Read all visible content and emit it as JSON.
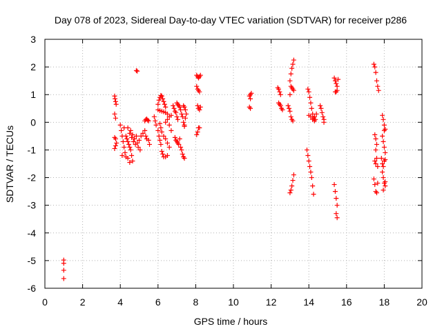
{
  "chart_data": {
    "type": "scatter",
    "title": "Day 078 of 2023, Sidereal Day-to-day VTEC variation (SDTVAR) for receiver p286",
    "xlabel": "GPS time / hours",
    "ylabel": "SDTVAR / TECUs",
    "xlim": [
      0,
      20
    ],
    "ylim": [
      -6,
      3
    ],
    "xticks": [
      "0",
      "2",
      "4",
      "6",
      "8",
      "10",
      "12",
      "14",
      "16",
      "18",
      "20"
    ],
    "yticks": [
      "-6",
      "-5",
      "-4",
      "-3",
      "-2",
      "-1",
      "0",
      "1",
      "2",
      "3"
    ],
    "grid": true,
    "marker": "+",
    "color": "#ff0000",
    "points": [
      [
        1.0,
        -4.98
      ],
      [
        1.0,
        -5.1
      ],
      [
        1.0,
        -5.35
      ],
      [
        1.0,
        -5.65
      ],
      [
        3.7,
        0.95
      ],
      [
        3.72,
        0.85
      ],
      [
        3.75,
        0.75
      ],
      [
        3.78,
        0.65
      ],
      [
        3.7,
        0.3
      ],
      [
        3.75,
        0.15
      ],
      [
        3.7,
        -0.55
      ],
      [
        3.75,
        -0.6
      ],
      [
        3.7,
        -0.95
      ],
      [
        3.75,
        -0.85
      ],
      [
        3.8,
        -0.75
      ],
      [
        4.0,
        -0.1
      ],
      [
        4.05,
        -0.3
      ],
      [
        4.1,
        -0.5
      ],
      [
        4.15,
        -0.7
      ],
      [
        4.2,
        -0.9
      ],
      [
        4.25,
        -1.1
      ],
      [
        4.3,
        -1.25
      ],
      [
        4.1,
        -1.2
      ],
      [
        4.2,
        -0.2
      ],
      [
        4.3,
        -0.5
      ],
      [
        4.35,
        -0.6
      ],
      [
        4.4,
        -0.7
      ],
      [
        4.45,
        -0.8
      ],
      [
        4.5,
        -0.9
      ],
      [
        4.55,
        -1.0
      ],
      [
        4.6,
        -1.2
      ],
      [
        4.65,
        -1.4
      ],
      [
        4.5,
        -1.45
      ],
      [
        4.4,
        -1.3
      ],
      [
        4.4,
        -0.2
      ],
      [
        4.5,
        -0.4
      ],
      [
        4.6,
        -0.55
      ],
      [
        4.7,
        -0.7
      ],
      [
        4.8,
        -0.8
      ],
      [
        4.9,
        -0.75
      ],
      [
        5.0,
        -0.65
      ],
      [
        5.1,
        -0.5
      ],
      [
        5.2,
        -0.4
      ],
      [
        4.55,
        -0.3
      ],
      [
        4.65,
        -0.45
      ],
      [
        4.75,
        -0.6
      ],
      [
        4.85,
        -0.5
      ],
      [
        4.95,
        -0.9
      ],
      [
        5.05,
        -1.0
      ],
      [
        4.85,
        1.87
      ],
      [
        4.9,
        1.85
      ],
      [
        5.3,
        0.05
      ],
      [
        5.35,
        0.1
      ],
      [
        5.4,
        0.12
      ],
      [
        5.45,
        0.08
      ],
      [
        5.5,
        0.05
      ],
      [
        5.3,
        -0.3
      ],
      [
        5.35,
        -0.5
      ],
      [
        5.4,
        -0.6
      ],
      [
        5.5,
        -0.65
      ],
      [
        5.55,
        -0.8
      ],
      [
        5.8,
        0.2
      ],
      [
        5.85,
        0.05
      ],
      [
        5.9,
        -0.1
      ],
      [
        6.0,
        -0.3
      ],
      [
        6.05,
        -0.5
      ],
      [
        6.1,
        -0.65
      ],
      [
        6.15,
        -0.8
      ],
      [
        6.2,
        -1.05
      ],
      [
        6.25,
        -1.15
      ],
      [
        6.3,
        -1.25
      ],
      [
        6.0,
        0.65
      ],
      [
        6.05,
        0.8
      ],
      [
        6.1,
        0.9
      ],
      [
        6.15,
        0.97
      ],
      [
        6.2,
        0.95
      ],
      [
        6.25,
        0.85
      ],
      [
        6.3,
        0.75
      ],
      [
        6.35,
        0.65
      ],
      [
        6.4,
        0.55
      ],
      [
        6.0,
        0.45
      ],
      [
        6.1,
        0.42
      ],
      [
        6.2,
        0.4
      ],
      [
        6.3,
        0.38
      ],
      [
        6.4,
        0.35
      ],
      [
        6.5,
        0.3
      ],
      [
        6.1,
        -0.05
      ],
      [
        6.15,
        -0.2
      ],
      [
        6.2,
        -0.35
      ],
      [
        6.3,
        -0.5
      ],
      [
        6.4,
        -0.6
      ],
      [
        6.5,
        -0.75
      ],
      [
        6.6,
        -0.9
      ],
      [
        6.5,
        -1.2
      ],
      [
        6.4,
        -1.25
      ],
      [
        6.4,
        0.0
      ],
      [
        6.5,
        0.1
      ],
      [
        6.6,
        0.2
      ],
      [
        6.7,
        0.25
      ],
      [
        6.6,
        -0.1
      ],
      [
        6.7,
        -0.3
      ],
      [
        6.8,
        0.6
      ],
      [
        6.85,
        0.5
      ],
      [
        6.9,
        0.4
      ],
      [
        6.95,
        0.35
      ],
      [
        7.0,
        0.2
      ],
      [
        7.05,
        0.1
      ],
      [
        6.9,
        -0.55
      ],
      [
        6.95,
        -0.65
      ],
      [
        7.0,
        -0.7
      ],
      [
        7.05,
        -0.75
      ],
      [
        7.1,
        -0.8
      ],
      [
        7.15,
        -0.6
      ],
      [
        7.0,
        0.7
      ],
      [
        7.05,
        0.65
      ],
      [
        7.1,
        0.6
      ],
      [
        7.15,
        0.55
      ],
      [
        7.2,
        0.45
      ],
      [
        7.25,
        0.3
      ],
      [
        7.3,
        0.2
      ],
      [
        7.35,
        0.0
      ],
      [
        7.4,
        -0.15
      ],
      [
        7.2,
        -0.9
      ],
      [
        7.25,
        -1.0
      ],
      [
        7.3,
        -1.15
      ],
      [
        7.35,
        -1.25
      ],
      [
        7.4,
        -1.3
      ],
      [
        7.35,
        0.6
      ],
      [
        7.4,
        0.55
      ],
      [
        7.45,
        0.45
      ],
      [
        7.5,
        0.3
      ],
      [
        7.45,
        0.15
      ],
      [
        7.4,
        -0.1
      ],
      [
        8.05,
        1.7
      ],
      [
        8.1,
        1.65
      ],
      [
        8.15,
        1.6
      ],
      [
        8.2,
        1.65
      ],
      [
        8.25,
        1.7
      ],
      [
        8.05,
        1.3
      ],
      [
        8.1,
        1.2
      ],
      [
        8.15,
        1.15
      ],
      [
        8.2,
        1.1
      ],
      [
        8.1,
        0.6
      ],
      [
        8.15,
        0.5
      ],
      [
        8.2,
        0.45
      ],
      [
        8.25,
        0.55
      ],
      [
        8.05,
        -0.45
      ],
      [
        8.1,
        -0.35
      ],
      [
        8.15,
        -0.2
      ],
      [
        8.2,
        -0.2
      ],
      [
        10.85,
        0.95
      ],
      [
        10.9,
        1.0
      ],
      [
        10.95,
        1.05
      ],
      [
        10.9,
        0.85
      ],
      [
        10.85,
        0.55
      ],
      [
        10.9,
        0.5
      ],
      [
        12.35,
        1.25
      ],
      [
        12.4,
        1.2
      ],
      [
        12.45,
        1.1
      ],
      [
        12.5,
        1.0
      ],
      [
        12.4,
        0.7
      ],
      [
        12.45,
        0.65
      ],
      [
        12.5,
        0.6
      ],
      [
        12.55,
        0.5
      ],
      [
        12.6,
        0.45
      ],
      [
        12.9,
        0.6
      ],
      [
        12.95,
        0.5
      ],
      [
        13.0,
        0.4
      ],
      [
        13.05,
        0.2
      ],
      [
        13.1,
        0.1
      ],
      [
        13.15,
        0.05
      ],
      [
        13.05,
        1.3
      ],
      [
        13.1,
        1.25
      ],
      [
        13.15,
        1.2
      ],
      [
        13.2,
        1.15
      ],
      [
        13.0,
        1.0
      ],
      [
        13.0,
        1.5
      ],
      [
        13.05,
        1.75
      ],
      [
        13.1,
        1.95
      ],
      [
        13.15,
        2.1
      ],
      [
        13.2,
        2.25
      ],
      [
        13.0,
        -2.55
      ],
      [
        13.05,
        -2.45
      ],
      [
        13.1,
        -2.3
      ],
      [
        13.15,
        -2.1
      ],
      [
        13.2,
        -1.9
      ],
      [
        13.95,
        1.2
      ],
      [
        14.0,
        1.1
      ],
      [
        14.05,
        0.9
      ],
      [
        14.1,
        0.7
      ],
      [
        14.15,
        0.5
      ],
      [
        14.2,
        0.3
      ],
      [
        14.25,
        0.15
      ],
      [
        14.3,
        0.05
      ],
      [
        14.35,
        0.1
      ],
      [
        14.0,
        0.25
      ],
      [
        14.1,
        0.2
      ],
      [
        14.2,
        0.1
      ],
      [
        14.3,
        0.2
      ],
      [
        14.4,
        0.3
      ],
      [
        13.9,
        -1.0
      ],
      [
        13.95,
        -1.2
      ],
      [
        14.0,
        -1.4
      ],
      [
        14.05,
        -1.6
      ],
      [
        14.1,
        -1.8
      ],
      [
        14.15,
        -2.0
      ],
      [
        14.2,
        -2.3
      ],
      [
        14.25,
        -2.6
      ],
      [
        14.6,
        0.6
      ],
      [
        14.65,
        0.5
      ],
      [
        14.7,
        0.35
      ],
      [
        14.75,
        0.2
      ],
      [
        14.8,
        0.1
      ],
      [
        14.8,
        0.0
      ],
      [
        15.35,
        1.6
      ],
      [
        15.4,
        1.5
      ],
      [
        15.45,
        1.4
      ],
      [
        15.5,
        1.3
      ],
      [
        15.55,
        1.55
      ],
      [
        15.4,
        1.1
      ],
      [
        15.45,
        1.1
      ],
      [
        15.5,
        1.15
      ],
      [
        15.35,
        -2.25
      ],
      [
        15.4,
        -2.5
      ],
      [
        15.45,
        -2.75
      ],
      [
        15.5,
        -3.0
      ],
      [
        15.45,
        -3.3
      ],
      [
        15.5,
        -3.45
      ],
      [
        17.45,
        2.1
      ],
      [
        17.5,
        2.0
      ],
      [
        17.55,
        1.8
      ],
      [
        17.6,
        1.5
      ],
      [
        17.65,
        1.3
      ],
      [
        17.7,
        1.15
      ],
      [
        17.5,
        -0.45
      ],
      [
        17.55,
        -0.6
      ],
      [
        17.6,
        -0.8
      ],
      [
        17.55,
        -1.0
      ],
      [
        17.6,
        -1.3
      ],
      [
        17.65,
        -1.6
      ],
      [
        17.5,
        -1.4
      ],
      [
        17.55,
        -1.5
      ],
      [
        17.45,
        -2.05
      ],
      [
        17.5,
        -2.25
      ],
      [
        17.55,
        -2.5
      ],
      [
        17.6,
        -2.55
      ],
      [
        17.65,
        -2.2
      ],
      [
        17.9,
        0.25
      ],
      [
        17.95,
        0.1
      ],
      [
        18.0,
        -0.1
      ],
      [
        18.05,
        -0.25
      ],
      [
        18.0,
        -0.3
      ],
      [
        17.9,
        -0.5
      ],
      [
        17.95,
        -0.7
      ],
      [
        18.0,
        -0.9
      ],
      [
        18.05,
        -1.1
      ],
      [
        17.85,
        -1.3
      ],
      [
        17.9,
        -1.5
      ],
      [
        17.95,
        -1.6
      ],
      [
        18.0,
        -1.4
      ],
      [
        18.05,
        -1.35
      ],
      [
        17.9,
        -1.8
      ],
      [
        17.95,
        -2.0
      ],
      [
        18.0,
        -2.2
      ],
      [
        18.05,
        -2.3
      ],
      [
        17.95,
        -2.45
      ],
      [
        18.05,
        -2.15
      ]
    ]
  }
}
